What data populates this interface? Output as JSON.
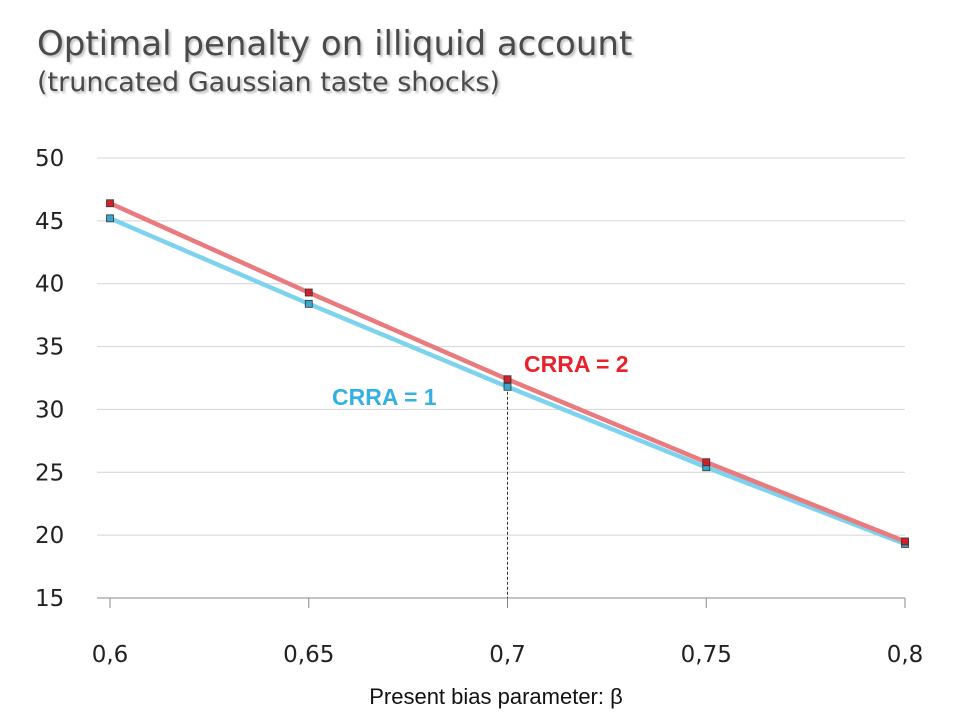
{
  "title": {
    "line1": "Optimal penalty on illiquid account",
    "line2": "(truncated Gaussian taste shocks)"
  },
  "chart_data": {
    "type": "line",
    "x": [
      0.6,
      0.65,
      0.7,
      0.75,
      0.8
    ],
    "x_tick_labels": [
      "0,6",
      "0,65",
      "0,7",
      "0,75",
      "0,8"
    ],
    "y_ticks": [
      15,
      20,
      25,
      30,
      35,
      40,
      45,
      50
    ],
    "y_tick_labels": [
      "15",
      "20",
      "25",
      "30",
      "35",
      "40",
      "45",
      "50"
    ],
    "ylim": [
      15,
      50
    ],
    "xlim": [
      0.6,
      0.8
    ],
    "xlabel": "Present bias parameter: β",
    "ylabel": "",
    "grid": "horizontal",
    "series": [
      {
        "name": "CRRA = 2",
        "values": [
          46.4,
          39.3,
          32.4,
          25.8,
          19.5
        ],
        "line_color": "#e97a7e",
        "marker_color": "#d0202a"
      },
      {
        "name": "CRRA = 1",
        "values": [
          45.2,
          38.4,
          31.8,
          25.4,
          19.3
        ],
        "line_color": "#7dd3ee",
        "marker_color": "#3aa7cf"
      }
    ],
    "annotations": [
      {
        "type": "vertical-dashed-line",
        "x": 0.7,
        "y_top": 31.8
      }
    ],
    "label_colors": {
      "CRRA = 2": "#e8212b",
      "CRRA = 1": "#33b1e3"
    }
  }
}
